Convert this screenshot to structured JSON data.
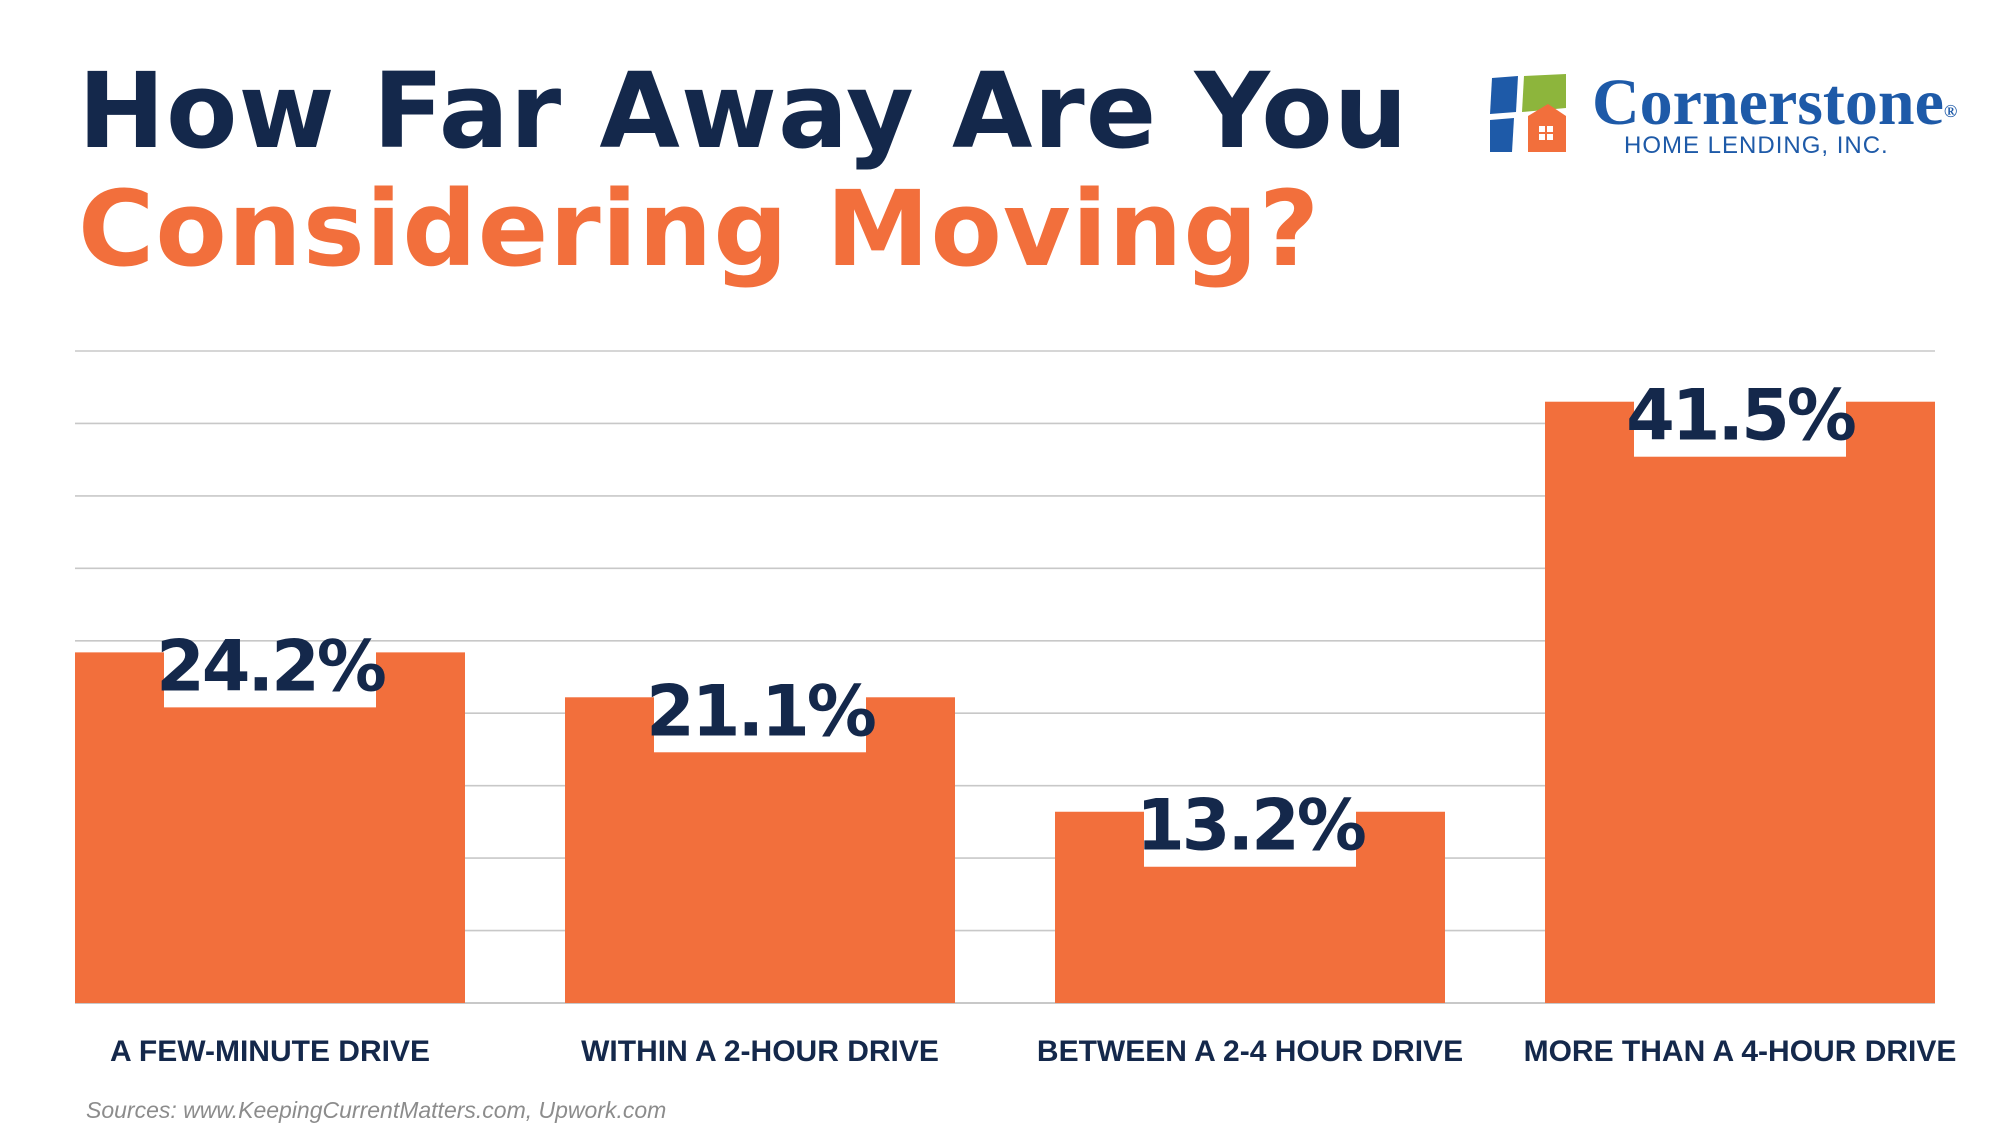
{
  "title": {
    "line1": "How Far Away Are You",
    "line2": "Considering Moving?"
  },
  "logo": {
    "name": "Cornerstone",
    "registered": "®",
    "subtitle": "HOME LENDING, INC.",
    "icon": "house-window-icon"
  },
  "colors": {
    "title_dark": "#14284b",
    "accent_orange": "#f26f3c",
    "brand_blue": "#1e5aa8",
    "brand_green": "#8db53c",
    "gridline": "#c8c8c8",
    "source_gray": "#8c8c8c"
  },
  "chart_data": {
    "type": "bar",
    "categories": [
      "A FEW-MINUTE DRIVE",
      "WITHIN A 2-HOUR DRIVE",
      "BETWEEN A 2-4 HOUR DRIVE",
      "MORE THAN A 4-HOUR DRIVE"
    ],
    "values": [
      24.2,
      21.1,
      13.2,
      41.5
    ],
    "value_labels": [
      "24.2%",
      "21.1%",
      "13.2%",
      "41.5%"
    ],
    "ylim": [
      0,
      45
    ],
    "grid": true,
    "legend": "none",
    "xlabel": "",
    "ylabel": ""
  },
  "source": "Sources: www.KeepingCurrentMatters.com, Upwork.com"
}
